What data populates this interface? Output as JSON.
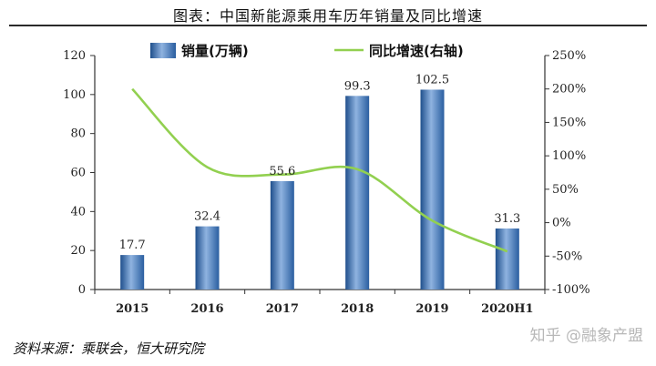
{
  "title": "图表：中国新能源乘用车历年销量及同比增速",
  "source": "资料来源：乘联会，恒大研究院",
  "watermark": "知乎 @融象产盟",
  "colors": {
    "bar": "#3f77bd",
    "line": "#92d050",
    "axis": "#333333"
  },
  "chart_data": {
    "type": "bar",
    "categories": [
      "2015",
      "2016",
      "2017",
      "2018",
      "2019",
      "2020H1"
    ],
    "series": [
      {
        "name": "销量(万辆)",
        "type": "bar",
        "axis": "left",
        "values": [
          17.7,
          32.4,
          55.6,
          99.3,
          102.5,
          31.3
        ],
        "labels": [
          "17.7",
          "32.4",
          "55.6",
          "99.3",
          "102.5",
          "31.3"
        ]
      },
      {
        "name": "同比增速(右轴)",
        "type": "line",
        "axis": "right",
        "values": [
          200,
          83,
          72,
          80,
          3,
          -43
        ]
      }
    ],
    "ylim_left": [
      0,
      120
    ],
    "yticks_left": [
      "0",
      "20",
      "40",
      "60",
      "80",
      "100",
      "120"
    ],
    "ylim_right": [
      -100,
      250
    ],
    "yticks_right": [
      "-100%",
      "-50%",
      "0%",
      "50%",
      "100%",
      "150%",
      "200%",
      "250%"
    ],
    "legend_position": "top"
  }
}
